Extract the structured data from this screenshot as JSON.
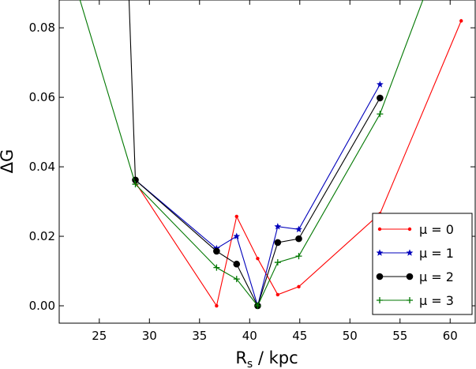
{
  "chart_data": {
    "type": "line",
    "xlabel_main": "R",
    "xlabel_sub": "s",
    "xlabel_rest": " / kpc",
    "ylabel": "ΔG",
    "xlim": [
      21,
      62.5
    ],
    "ylim": [
      -0.005,
      0.088
    ],
    "xticks": [
      "25",
      "30",
      "35",
      "40",
      "45",
      "50",
      "55",
      "60"
    ],
    "yticks": [
      "0.00",
      "0.02",
      "0.04",
      "0.06",
      "0.08"
    ],
    "legend_position": "lower-right",
    "series": [
      {
        "name": "μ = 0",
        "color": "#ff0000",
        "marker": "dot",
        "x": [
          28.6,
          36.7,
          38.7,
          40.8,
          42.8,
          44.9,
          53.0,
          61.1
        ],
        "y": [
          0.0355,
          0.0,
          0.0257,
          0.0136,
          0.0032,
          0.0055,
          0.0265,
          0.082
        ]
      },
      {
        "name": "μ = 1",
        "color": "#0000bb",
        "marker": "star",
        "x": [
          28.6,
          36.7,
          38.7,
          40.8,
          42.8,
          44.9,
          53.0
        ],
        "y": [
          0.0362,
          0.0165,
          0.02,
          0.0,
          0.0228,
          0.022,
          0.0637
        ]
      },
      {
        "name": "μ = 2",
        "color": "#000000",
        "marker": "circle",
        "x": [
          27.9,
          28.6,
          36.7,
          38.7,
          40.8,
          42.8,
          44.9,
          53.0
        ],
        "y": [
          0.0935,
          0.0362,
          0.0157,
          0.012,
          0.0,
          0.0182,
          0.0193,
          0.0598
        ]
      },
      {
        "name": "μ = 3",
        "color": "#007700",
        "marker": "plus",
        "x": [
          22.5,
          28.6,
          36.7,
          38.7,
          40.8,
          42.8,
          44.9,
          53.0,
          58.0
        ],
        "y": [
          0.0935,
          0.035,
          0.011,
          0.0077,
          0.0,
          0.0125,
          0.0143,
          0.0552,
          0.0935
        ]
      }
    ]
  }
}
